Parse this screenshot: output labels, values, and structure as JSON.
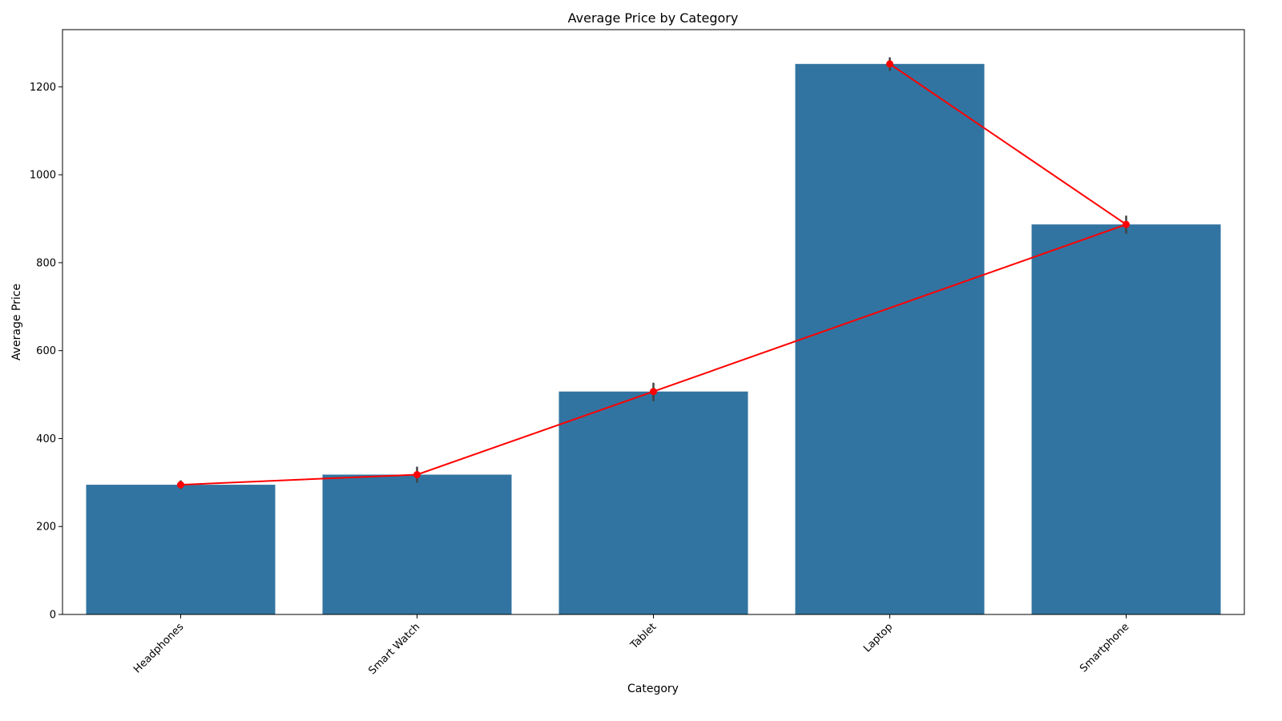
{
  "chart_data": {
    "type": "bar",
    "title": "Average Price by Category",
    "xlabel": "Category",
    "ylabel": "Average Price",
    "categories": [
      "Headphones",
      "Smart Watch",
      "Tablet",
      "Laptop",
      "Smartphone"
    ],
    "values": [
      295,
      318,
      507,
      1252,
      887
    ],
    "error_bars": [
      [
        285,
        305
      ],
      [
        300,
        336
      ],
      [
        485,
        527
      ],
      [
        1236,
        1267
      ],
      [
        866,
        907
      ]
    ],
    "line_series": {
      "x_order": [
        "Headphones",
        "Smart Watch",
        "Tablet",
        "Smartphone",
        "Laptop"
      ],
      "values": [
        295,
        318,
        507,
        887,
        1252
      ]
    },
    "ylim": [
      0,
      1330
    ],
    "yticks": [
      0,
      200,
      400,
      600,
      800,
      1000,
      1200
    ],
    "grid": false,
    "legend": "none",
    "colors": {
      "bar": "#3274a1",
      "line": "#ff0000",
      "errorbar": "#424242"
    }
  }
}
